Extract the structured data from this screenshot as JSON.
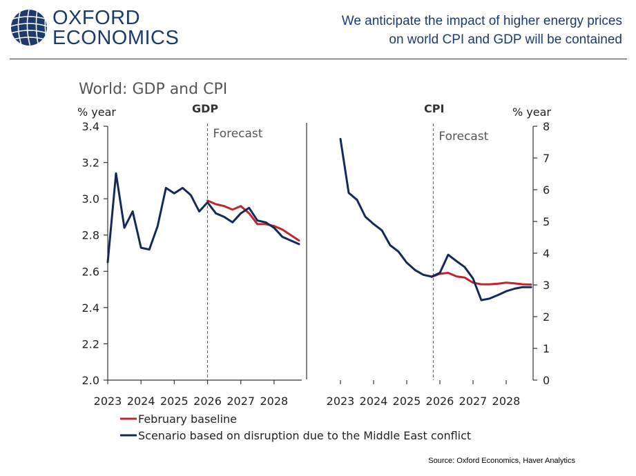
{
  "header": {
    "brand_line1": "OXFORD",
    "brand_line2": "ECONOMICS",
    "headline_line1": "We anticipate the impact of higher energy prices",
    "headline_line2": "on world CPI and GDP will be contained"
  },
  "colors": {
    "brand_navy": "#1d3a6e",
    "baseline_red": "#c0242c",
    "scenario_navy": "#13295a"
  },
  "source": "Source: Oxford Economics, Haver Analytics",
  "chart_data": [
    {
      "type": "line",
      "title": "World: GDP and CPI",
      "panel_label": "GDP",
      "ylabel": "% year",
      "forecast_label": "Forecast",
      "ylim": [
        2.0,
        3.4
      ],
      "yticks": [
        "2.0",
        "2.2",
        "2.4",
        "2.6",
        "2.8",
        "3.0",
        "3.2",
        "3.4"
      ],
      "xticks": [
        "2023",
        "2024",
        "2025",
        "2026",
        "2027",
        "2028"
      ],
      "x_range": [
        2023.0,
        2028.75
      ],
      "forecast_start": 2026.0,
      "series": [
        {
          "name": "February baseline",
          "x": [
            2026.0,
            2026.25,
            2026.5,
            2026.75,
            2027.0,
            2027.25,
            2027.5,
            2027.75,
            2028.0,
            2028.25,
            2028.5,
            2028.75
          ],
          "values": [
            2.99,
            2.97,
            2.96,
            2.94,
            2.96,
            2.92,
            2.86,
            2.86,
            2.85,
            2.83,
            2.8,
            2.77
          ]
        },
        {
          "name": "Scenario based on disruption due to the Middle East conflict",
          "x": [
            2023.0,
            2023.25,
            2023.5,
            2023.75,
            2024.0,
            2024.25,
            2024.5,
            2024.75,
            2025.0,
            2025.25,
            2025.5,
            2025.75,
            2026.0,
            2026.25,
            2026.5,
            2026.75,
            2027.0,
            2027.25,
            2027.5,
            2027.75,
            2028.0,
            2028.25,
            2028.5,
            2028.75
          ],
          "values": [
            2.65,
            3.14,
            2.84,
            2.93,
            2.73,
            2.72,
            2.85,
            3.06,
            3.03,
            3.06,
            3.02,
            2.93,
            2.98,
            2.92,
            2.9,
            2.87,
            2.92,
            2.95,
            2.88,
            2.87,
            2.84,
            2.79,
            2.77,
            2.75
          ]
        }
      ]
    },
    {
      "type": "line",
      "panel_label": "CPI",
      "ylabel": "% year",
      "forecast_label": "Forecast",
      "ylim": [
        0,
        8
      ],
      "yticks": [
        "0",
        "1",
        "2",
        "3",
        "4",
        "5",
        "6",
        "7",
        "8"
      ],
      "xticks": [
        "2023",
        "2024",
        "2025",
        "2026",
        "2027",
        "2028"
      ],
      "x_range": [
        2023.0,
        2028.75
      ],
      "forecast_start": 2025.8,
      "series": [
        {
          "name": "February baseline",
          "x": [
            2025.75,
            2026.0,
            2026.25,
            2026.5,
            2026.75,
            2027.0,
            2027.25,
            2027.5,
            2027.75,
            2028.0,
            2028.25,
            2028.5,
            2028.75
          ],
          "values": [
            3.25,
            3.35,
            3.38,
            3.27,
            3.23,
            3.07,
            3.02,
            3.02,
            3.04,
            3.07,
            3.05,
            3.02,
            3.01
          ]
        },
        {
          "name": "Scenario based on disruption due to the Middle East conflict",
          "x": [
            2023.0,
            2023.25,
            2023.5,
            2023.75,
            2024.0,
            2024.25,
            2024.5,
            2024.75,
            2025.0,
            2025.25,
            2025.5,
            2025.75,
            2026.0,
            2026.25,
            2026.5,
            2026.75,
            2027.0,
            2027.25,
            2027.5,
            2027.75,
            2028.0,
            2028.25,
            2028.5,
            2028.75
          ],
          "values": [
            7.6,
            5.9,
            5.68,
            5.15,
            4.92,
            4.72,
            4.25,
            4.05,
            3.7,
            3.47,
            3.32,
            3.26,
            3.38,
            3.95,
            3.75,
            3.56,
            3.2,
            2.52,
            2.57,
            2.68,
            2.8,
            2.88,
            2.93,
            2.93
          ]
        }
      ]
    }
  ],
  "legend": {
    "items": [
      {
        "label": "February baseline",
        "color": "#c0242c"
      },
      {
        "label": "Scenario based on disruption due to the Middle East conflict",
        "color": "#13295a"
      }
    ]
  }
}
